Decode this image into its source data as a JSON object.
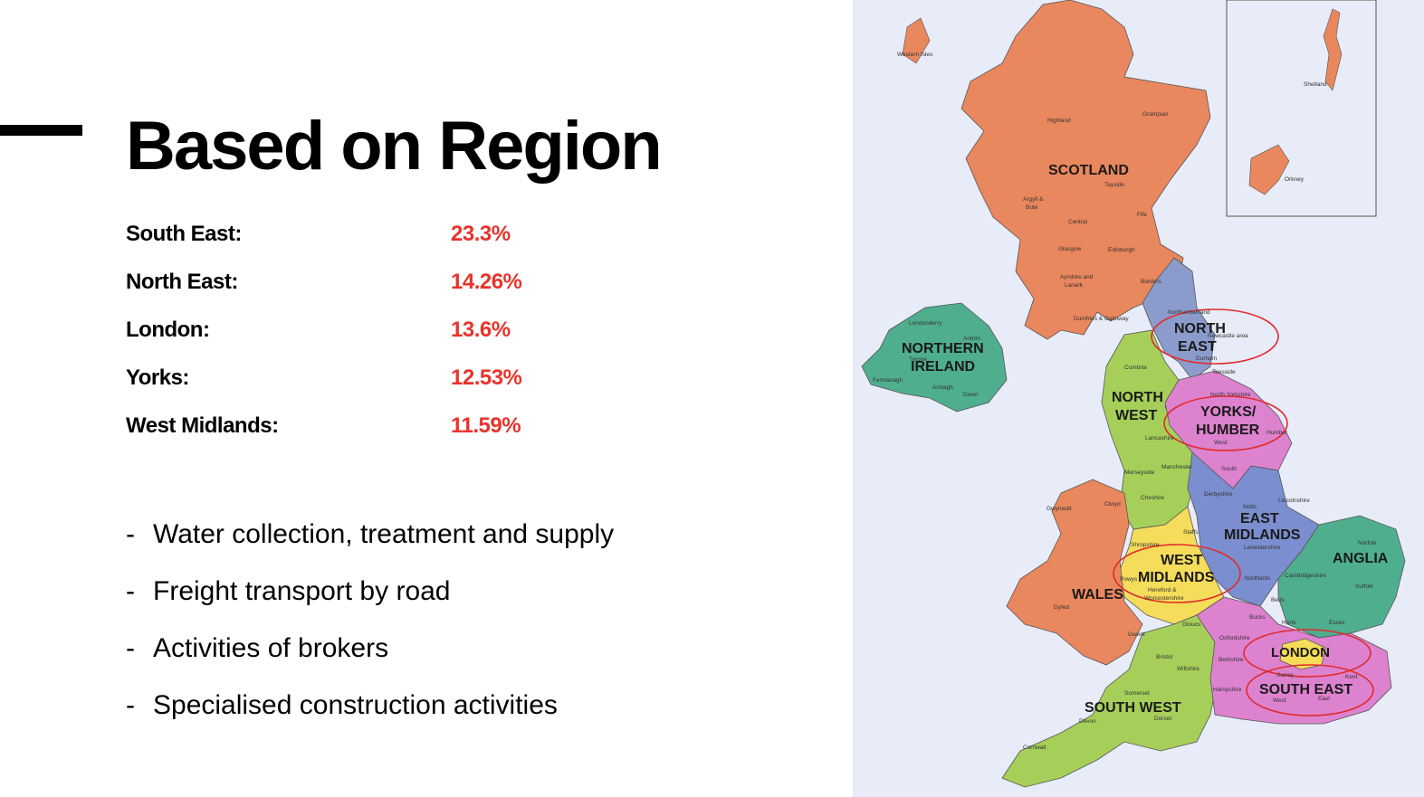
{
  "title": "Based on Region",
  "stats": [
    {
      "label": "South East:",
      "value": "23.3%"
    },
    {
      "label": "North East:",
      "value": "14.26%"
    },
    {
      "label": "London:",
      "value": "13.6%"
    },
    {
      "label": "Yorks:",
      "value": "12.53%"
    },
    {
      "label": "West Midlands:",
      "value": "11.59%"
    }
  ],
  "bullets": [
    {
      "dash": "-",
      "text": "Water collection, treatment and supply"
    },
    {
      "dash": "-",
      "text": "Freight transport by road"
    },
    {
      "dash": "-",
      "text": "Activities of brokers"
    },
    {
      "dash": "-",
      "text": "Specialised construction activities"
    }
  ],
  "map": {
    "regions": {
      "scotland": "SCOTLAND",
      "northern_ireland_1": "NORTHERN",
      "northern_ireland_2": "IRELAND",
      "north_east_1": "NORTH",
      "north_east_2": "EAST",
      "north_west_1": "NORTH",
      "north_west_2": "WEST",
      "yorks_1": "YORKS/",
      "yorks_2": "HUMBER",
      "east_midlands_1": "EAST",
      "east_midlands_2": "MIDLANDS",
      "west_midlands_1": "WEST",
      "west_midlands_2": "MIDLANDS",
      "wales": "WALES",
      "anglia": "ANGLIA",
      "london": "LONDON",
      "south_east": "SOUTH EAST",
      "south_west": "SOUTH WEST"
    },
    "areas": {
      "western_isles": "Western Isles",
      "shetland": "Shetland",
      "orkney": "Orkney",
      "highland": "Highland",
      "grampian": "Grampian",
      "tayside": "Tayside",
      "argyll": "Argyll &",
      "bute": "Bute",
      "central": "Central",
      "fife": "Fife",
      "glasgow": "Glasgow",
      "edinburgh": "Edinburgh",
      "ayrshire": "Ayrshire and",
      "lanark": "Lanark",
      "borders": "Borders",
      "dumfries": "Dumfries & Galloway",
      "northumberland": "Northumberland",
      "newcastle": "Newcastle area",
      "durham": "Durham",
      "cumbria": "Cumbria",
      "teesside": "Teesside",
      "north_yorkshire": "North Yorkshire",
      "lancashire": "Lancashire",
      "west_yorkshire": "West",
      "humber": "Humber",
      "manchester": "Manchester",
      "merseyside": "Merseyside",
      "south_yorkshire": "South",
      "cheshire": "Cheshire",
      "derbyshire": "Derbyshire",
      "lincolnshire": "Lincolnshire",
      "notts": "Notts",
      "gwynedd": "Gwynedd",
      "clwyd": "Clwyd",
      "shropshire": "Shropshire",
      "staffs": "Staffs",
      "leicestershire": "Leicestershire",
      "norfolk": "Norfolk",
      "powys": "Powys",
      "hereford": "Hereford &",
      "worcestershire": "Worcestershire",
      "northants": "Northants",
      "cambridgeshire": "Cambridgeshire",
      "suffolk": "Suffolk",
      "dyfed": "Dyfed",
      "beds": "Beds",
      "bucks": "Bucks",
      "herts": "Herts",
      "essex": "Essex",
      "gloucs": "Gloucs",
      "oxfordshire": "Oxfordshire",
      "gwent": "Gwent",
      "bristol": "Bristol",
      "berkshire": "Berkshire",
      "wiltshire": "Wiltshire",
      "surrey": "Surrey",
      "kent": "Kent",
      "hampshire": "Hampshire",
      "west_sussex": "West",
      "east_sussex": "East",
      "somerset": "Somerset",
      "devon": "Devon",
      "dorset": "Dorset",
      "cornwall": "Cornwall",
      "antrim": "Antrim",
      "londonderry": "Londonderry",
      "tyrone": "Tyrone",
      "fermanagh": "Fermanagh",
      "armagh": "Armagh",
      "down": "Down"
    },
    "colors": {
      "sea": "#e8ecf8",
      "scotland": "#e9875e",
      "wales": "#e9875e",
      "northern_ireland": "#4fae8d",
      "north_east": "#8b9ccc",
      "north_west": "#a6cf5a",
      "yorks": "#dd82cf",
      "east_midlands": "#7b8ecf",
      "west_midlands": "#f5dc5a",
      "anglia": "#4fae8d",
      "london": "#f5dc5a",
      "south_east": "#dd82cf",
      "south_west": "#a6cf5a",
      "highlight_circle": "#e02b2b"
    }
  }
}
